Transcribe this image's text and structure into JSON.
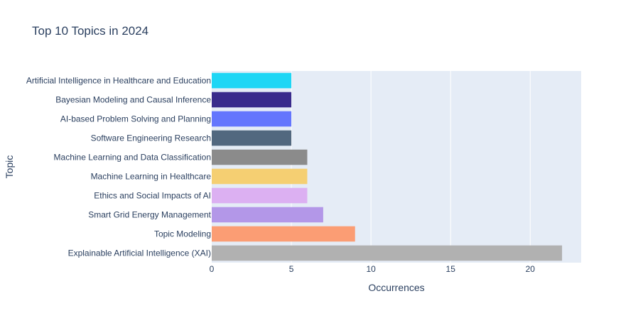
{
  "chart_data": {
    "type": "bar",
    "orientation": "horizontal",
    "title": "Top 10 Topics in 2024",
    "xlabel": "Occurrences",
    "ylabel": "Topic",
    "xlim": [
      0,
      23.2
    ],
    "x_ticks": [
      0,
      5,
      10,
      15,
      20
    ],
    "grid": true,
    "plot_background": "#e5ecf6",
    "categories": [
      "Artificial Intelligence in Healthcare and Education",
      "Bayesian Modeling and Causal Inference",
      "AI-based Problem Solving and Planning",
      "Software Engineering Research",
      "Machine Learning and Data Classification",
      "Machine Learning in Healthcare",
      "Ethics and Social Impacts of AI",
      "Smart Grid Energy Management",
      "Topic Modeling",
      "Explainable Artificial Intelligence (XAI)"
    ],
    "values": [
      5,
      5,
      5,
      5,
      6,
      6,
      6,
      7,
      9,
      22
    ],
    "colors": [
      "#1ed6f5",
      "#392b8c",
      "#6476fd",
      "#52687f",
      "#8b8b8b",
      "#f5cf72",
      "#dcb0f2",
      "#b397e8",
      "#fb9d74",
      "#b1b1b1"
    ]
  }
}
